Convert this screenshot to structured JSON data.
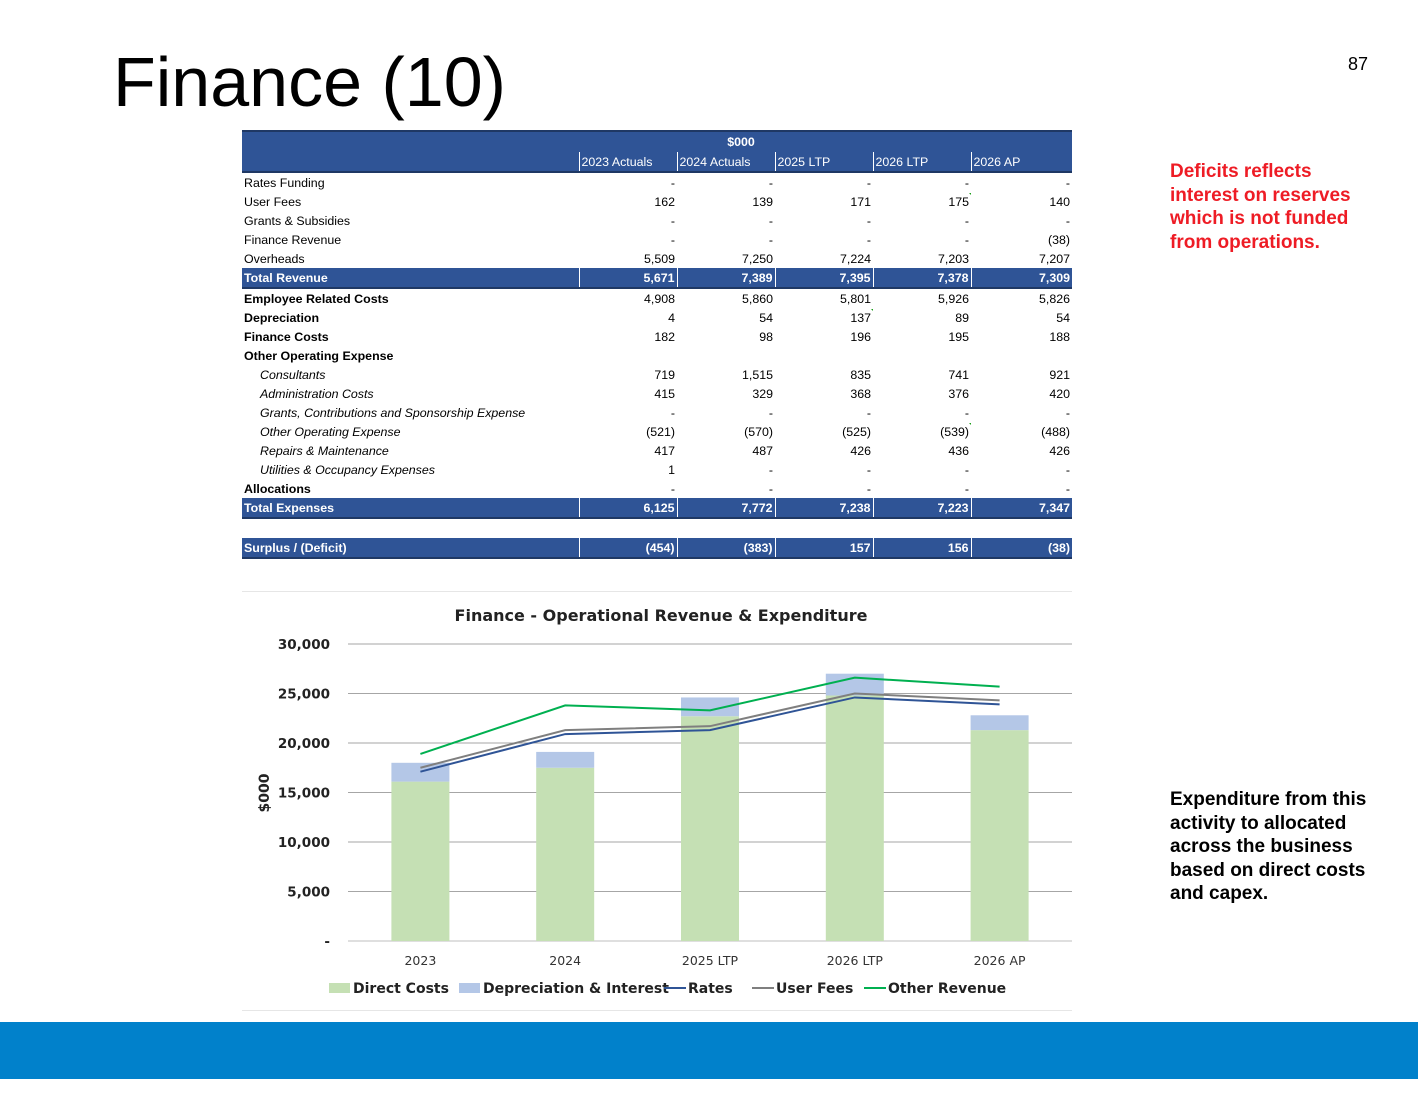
{
  "slide": {
    "title": "Finance (10)",
    "page_number": "87",
    "note_red": "Deficits reflects interest on reserves which is not funded from operations.",
    "note_black": "Expenditure from this activity to allocated across the business based on direct costs and capex."
  },
  "table": {
    "unit_header": "$000",
    "columns": [
      "2023 Actuals",
      "2024 Actuals",
      "2025 LTP",
      "2026 LTP",
      "2026 AP"
    ],
    "rows": [
      {
        "label": "Rates Funding",
        "style": "normal",
        "values": [
          "-",
          "-",
          "-",
          "-",
          "-"
        ]
      },
      {
        "label": "User Fees",
        "style": "normal",
        "values": [
          "162",
          "139",
          "171",
          "175",
          "140"
        ]
      },
      {
        "label": "Grants & Subsidies",
        "style": "normal",
        "values": [
          "-",
          "-",
          "-",
          "-",
          "-"
        ]
      },
      {
        "label": "Finance Revenue",
        "style": "normal",
        "values": [
          "-",
          "-",
          "-",
          "-",
          "(38)"
        ]
      },
      {
        "label": "Overheads",
        "style": "normal",
        "values": [
          "5,509",
          "7,250",
          "7,224",
          "7,203",
          "7,207"
        ]
      },
      {
        "label": "Total Revenue",
        "style": "total",
        "values": [
          "5,671",
          "7,389",
          "7,395",
          "7,378",
          "7,309"
        ]
      },
      {
        "label": "Employee Related Costs",
        "style": "bold",
        "values": [
          "4,908",
          "5,860",
          "5,801",
          "5,926",
          "5,826"
        ]
      },
      {
        "label": "Depreciation",
        "style": "bold",
        "values": [
          "4",
          "54",
          "137",
          "89",
          "54"
        ]
      },
      {
        "label": "Finance Costs",
        "style": "bold",
        "values": [
          "182",
          "98",
          "196",
          "195",
          "188"
        ]
      },
      {
        "label": "Other Operating  Expense",
        "style": "bold",
        "values": [
          "",
          "",
          "",
          "",
          ""
        ]
      },
      {
        "label": "Consultants",
        "style": "sub",
        "values": [
          "719",
          "1,515",
          "835",
          "741",
          "921"
        ]
      },
      {
        "label": "Administration Costs",
        "style": "sub",
        "values": [
          "415",
          "329",
          "368",
          "376",
          "420"
        ]
      },
      {
        "label": "Grants, Contributions and Sponsorship Expense",
        "style": "sub",
        "values": [
          "-",
          "-",
          "-",
          "-",
          "-"
        ]
      },
      {
        "label": "Other Operating Expense",
        "style": "sub",
        "values": [
          "(521)",
          "(570)",
          "(525)",
          "(539)",
          "(488)"
        ]
      },
      {
        "label": "Repairs & Maintenance",
        "style": "sub",
        "values": [
          "417",
          "487",
          "426",
          "436",
          "426"
        ]
      },
      {
        "label": "Utilities & Occupancy Expenses",
        "style": "sub",
        "values": [
          "1",
          "-",
          "-",
          "-",
          "-"
        ]
      },
      {
        "label": "Allocations",
        "style": "bold",
        "values": [
          "-",
          "-",
          "-",
          "-",
          "-"
        ]
      },
      {
        "label": "Total Expenses",
        "style": "total",
        "values": [
          "6,125",
          "7,772",
          "7,238",
          "7,223",
          "7,347"
        ]
      },
      {
        "label": "",
        "style": "spacer",
        "values": [
          "",
          "",
          "",
          "",
          ""
        ]
      },
      {
        "label": "Surplus / (Deficit)",
        "style": "total",
        "values": [
          "(454)",
          "(383)",
          "157",
          "156",
          "(38)"
        ]
      }
    ]
  },
  "chart_data": {
    "type": "bar",
    "title": "Finance - Operational Revenue & Expenditure",
    "xlabel": "",
    "ylabel": "$000",
    "ylim": [
      0,
      30000
    ],
    "yticks": [
      0,
      5000,
      10000,
      15000,
      20000,
      25000,
      30000
    ],
    "ytick_labels": [
      "-",
      "5,000",
      "10,000",
      "15,000",
      "20,000",
      "25,000",
      "30,000"
    ],
    "grid": true,
    "legend_position": "bottom",
    "stacked": true,
    "categories": [
      "2023",
      "2024",
      "2025 LTP",
      "2026 LTP",
      "2026 AP"
    ],
    "series": [
      {
        "name": "Direct Costs",
        "kind": "bar",
        "color": "#c5e0b4",
        "values": [
          16100,
          17500,
          22700,
          24800,
          21300
        ]
      },
      {
        "name": "Depreciation & Interest",
        "kind": "bar",
        "color": "#b4c7e7",
        "values": [
          1900,
          1600,
          1900,
          2200,
          1500
        ]
      },
      {
        "name": "Rates",
        "kind": "line",
        "color": "#2f5496",
        "values": [
          17100,
          20900,
          21300,
          24600,
          23900
        ]
      },
      {
        "name": "User Fees",
        "kind": "line",
        "color": "#7f7f7f",
        "values": [
          17500,
          21300,
          21700,
          25000,
          24300
        ]
      },
      {
        "name": "Other Revenue",
        "kind": "line",
        "color": "#00b050",
        "values": [
          18900,
          23800,
          23300,
          26600,
          25700
        ]
      }
    ]
  }
}
